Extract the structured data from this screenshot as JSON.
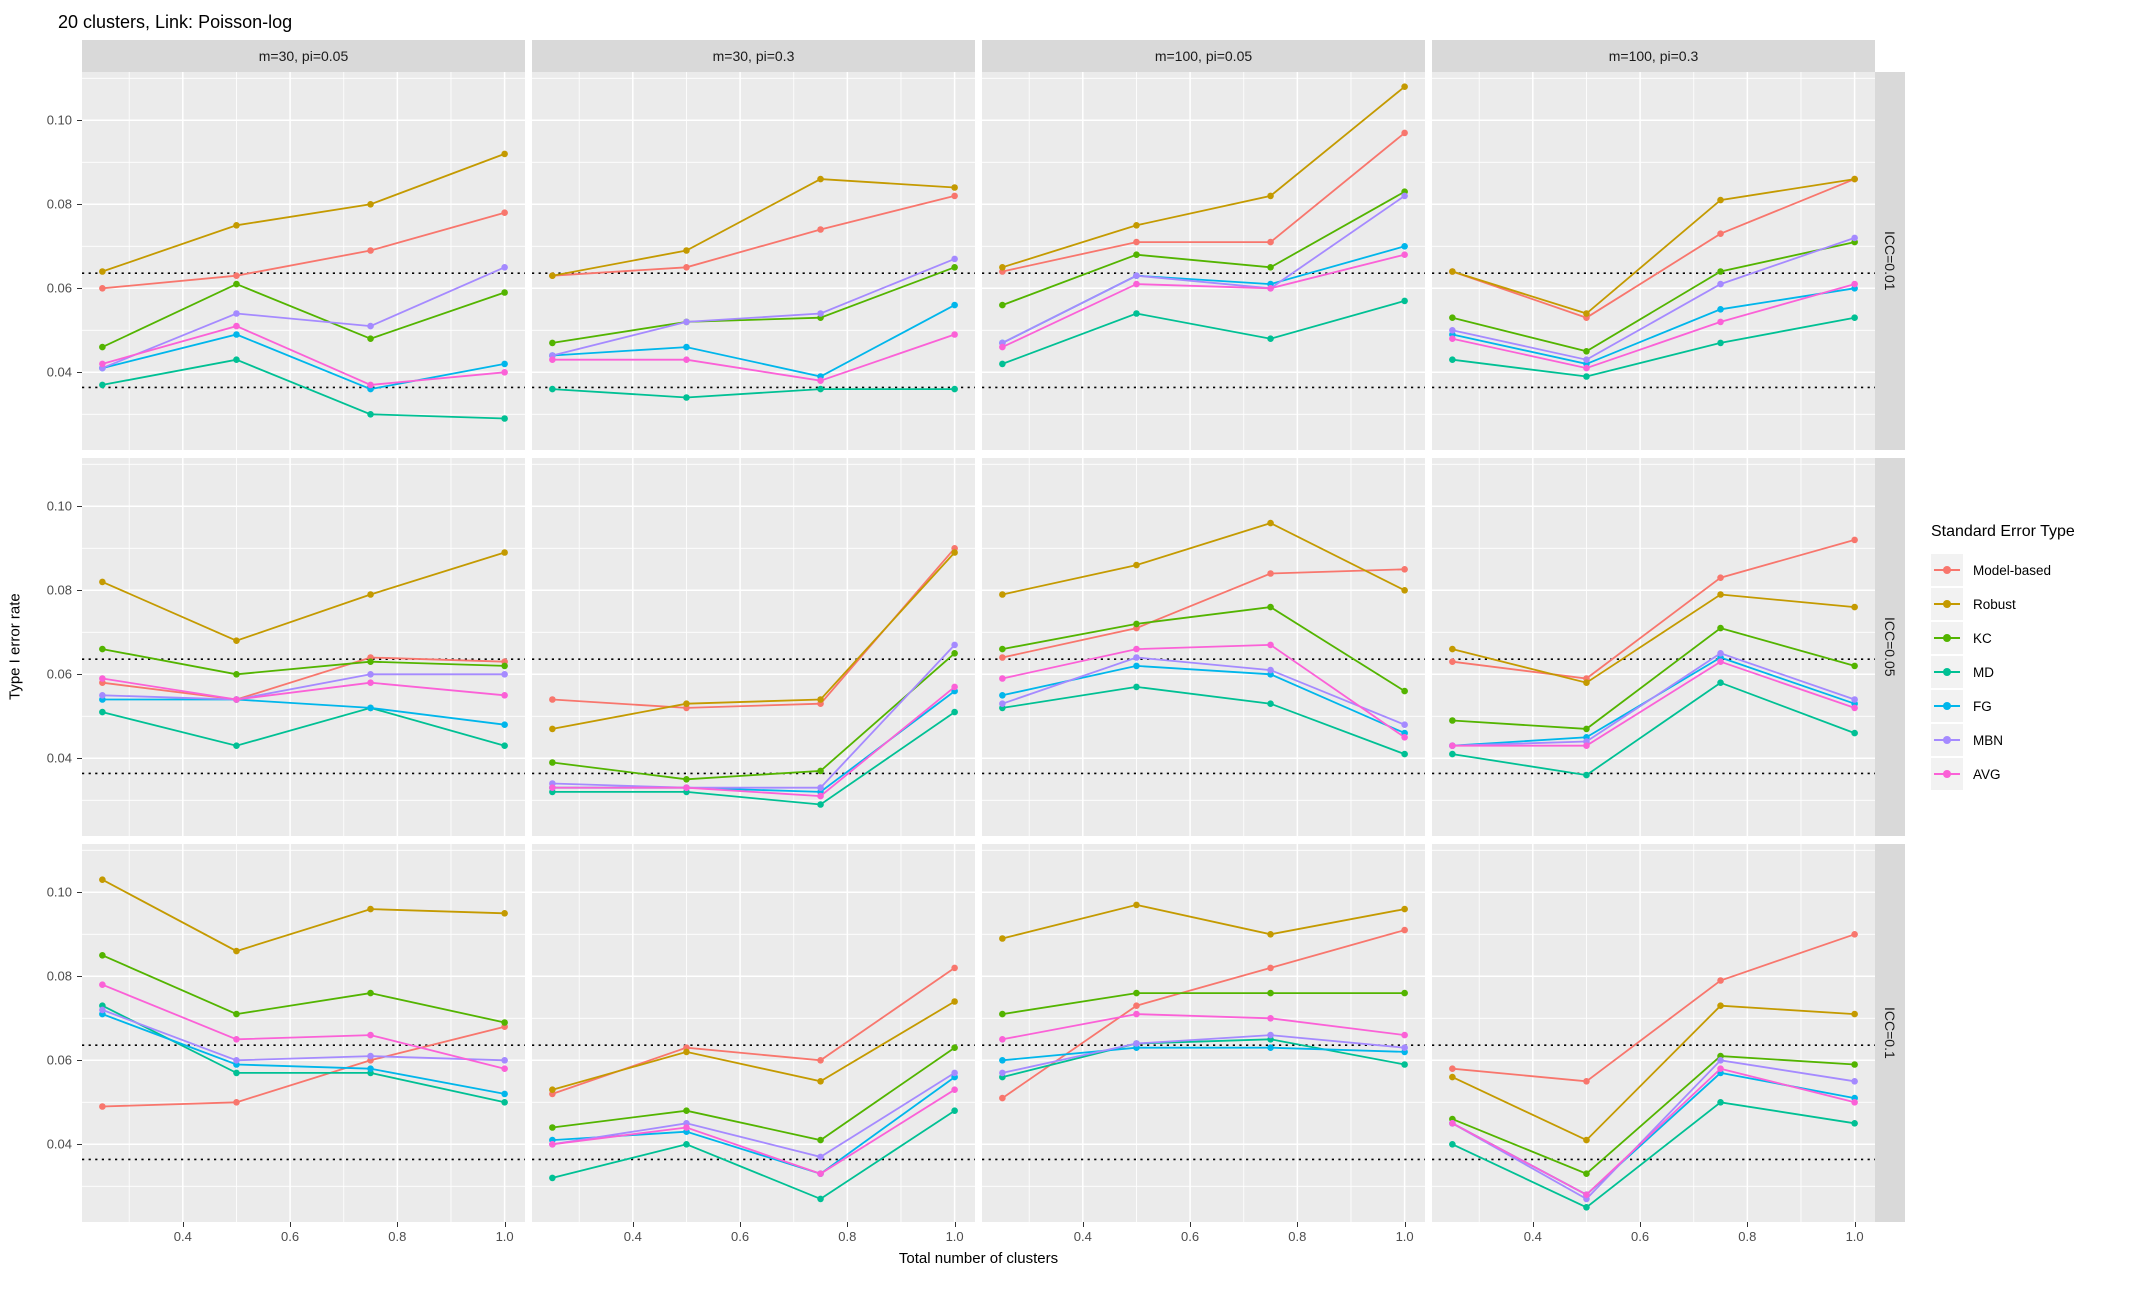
{
  "title": "20 clusters, Link: Poisson-log",
  "chart_data": {
    "type": "line",
    "title": "20 clusters, Link: Poisson-log",
    "xlabel": "Total number of clusters",
    "ylabel": "Type I error rate",
    "legend_title": "Standard Error Type",
    "legend_position": "right",
    "grid": "on",
    "x": [
      0.25,
      0.5,
      0.75,
      1.0
    ],
    "xlim": [
      0.212,
      1.038
    ],
    "ylim": [
      0.0215,
      0.1115
    ],
    "x_tick_labels": [
      "0.4",
      "0.6",
      "0.8",
      "1.0"
    ],
    "x_tick_values": [
      0.4,
      0.6,
      0.8,
      1.0
    ],
    "x_minor_ticks": [
      0.3,
      0.5,
      0.7,
      0.9
    ],
    "y_tick_labels": [
      "0.10",
      "0.08",
      "0.06",
      "0.04"
    ],
    "y_tick_values": [
      0.1,
      0.08,
      0.06,
      0.04
    ],
    "y_minor_ticks": [
      0.03,
      0.05,
      0.07,
      0.09,
      0.11
    ],
    "reference_lines": [
      0.0636,
      0.0364
    ],
    "colors": {
      "panel_bg": "#EBEBEB",
      "strip_bg": "#D9D9D9",
      "gridline": "#FFFFFF",
      "reference_line": "#000000"
    },
    "col_facets": [
      "m=30, pi=0.05",
      "m=30, pi=0.3",
      "m=100, pi=0.05",
      "m=100, pi=0.3"
    ],
    "row_facets": [
      "ICC=0.01",
      "ICC=0.05",
      "ICC=0.1"
    ],
    "series": [
      {
        "name": "Model-based",
        "color": "#F8766D"
      },
      {
        "name": "Robust",
        "color": "#C49A00"
      },
      {
        "name": "KC",
        "color": "#53B400"
      },
      {
        "name": "MD",
        "color": "#00C094"
      },
      {
        "name": "FG",
        "color": "#00B6EB"
      },
      {
        "name": "MBN",
        "color": "#A58AFF"
      },
      {
        "name": "AVG",
        "color": "#FB61D7"
      }
    ],
    "panels": [
      {
        "row_facet": "ICC=0.01",
        "col_facet": "m=30, pi=0.05",
        "values": {
          "Model-based": [
            0.06,
            0.063,
            0.069,
            0.078
          ],
          "Robust": [
            0.064,
            0.075,
            0.08,
            0.092
          ],
          "KC": [
            0.046,
            0.061,
            0.048,
            0.059
          ],
          "MD": [
            0.037,
            0.043,
            0.03,
            0.029
          ],
          "FG": [
            0.041,
            0.049,
            0.036,
            0.042
          ],
          "MBN": [
            0.041,
            0.054,
            0.051,
            0.065
          ],
          "AVG": [
            0.042,
            0.051,
            0.037,
            0.04
          ]
        }
      },
      {
        "row_facet": "ICC=0.01",
        "col_facet": "m=30, pi=0.3",
        "values": {
          "Model-based": [
            0.063,
            0.065,
            0.074,
            0.082
          ],
          "Robust": [
            0.063,
            0.069,
            0.086,
            0.084
          ],
          "KC": [
            0.047,
            0.052,
            0.053,
            0.065
          ],
          "MD": [
            0.036,
            0.034,
            0.036,
            0.036
          ],
          "FG": [
            0.044,
            0.046,
            0.039,
            0.056
          ],
          "MBN": [
            0.044,
            0.052,
            0.054,
            0.067
          ],
          "AVG": [
            0.043,
            0.043,
            0.038,
            0.049
          ]
        }
      },
      {
        "row_facet": "ICC=0.01",
        "col_facet": "m=100, pi=0.05",
        "values": {
          "Model-based": [
            0.064,
            0.071,
            0.071,
            0.097
          ],
          "Robust": [
            0.065,
            0.075,
            0.082,
            0.108
          ],
          "KC": [
            0.056,
            0.068,
            0.065,
            0.083
          ],
          "MD": [
            0.042,
            0.054,
            0.048,
            0.057
          ],
          "FG": [
            0.047,
            0.063,
            0.061,
            0.07
          ],
          "MBN": [
            0.047,
            0.063,
            0.06,
            0.082
          ],
          "AVG": [
            0.046,
            0.061,
            0.06,
            0.068
          ]
        }
      },
      {
        "row_facet": "ICC=0.01",
        "col_facet": "m=100, pi=0.3",
        "values": {
          "Model-based": [
            0.064,
            0.053,
            0.073,
            0.086
          ],
          "Robust": [
            0.064,
            0.054,
            0.081,
            0.086
          ],
          "KC": [
            0.053,
            0.045,
            0.064,
            0.071
          ],
          "MD": [
            0.043,
            0.039,
            0.047,
            0.053
          ],
          "FG": [
            0.049,
            0.042,
            0.055,
            0.06
          ],
          "MBN": [
            0.05,
            0.043,
            0.061,
            0.072
          ],
          "AVG": [
            0.048,
            0.041,
            0.052,
            0.061
          ]
        }
      },
      {
        "row_facet": "ICC=0.05",
        "col_facet": "m=30, pi=0.05",
        "values": {
          "Model-based": [
            0.058,
            0.054,
            0.064,
            0.063
          ],
          "Robust": [
            0.082,
            0.068,
            0.079,
            0.089
          ],
          "KC": [
            0.066,
            0.06,
            0.063,
            0.062
          ],
          "MD": [
            0.051,
            0.043,
            0.052,
            0.043
          ],
          "FG": [
            0.054,
            0.054,
            0.052,
            0.048
          ],
          "MBN": [
            0.055,
            0.054,
            0.06,
            0.06
          ],
          "AVG": [
            0.059,
            0.054,
            0.058,
            0.055
          ]
        }
      },
      {
        "row_facet": "ICC=0.05",
        "col_facet": "m=30, pi=0.3",
        "values": {
          "Model-based": [
            0.054,
            0.052,
            0.053,
            0.09
          ],
          "Robust": [
            0.047,
            0.053,
            0.054,
            0.089
          ],
          "KC": [
            0.039,
            0.035,
            0.037,
            0.065
          ],
          "MD": [
            0.032,
            0.032,
            0.029,
            0.051
          ],
          "FG": [
            0.033,
            0.033,
            0.032,
            0.056
          ],
          "MBN": [
            0.034,
            0.033,
            0.033,
            0.067
          ],
          "AVG": [
            0.033,
            0.033,
            0.031,
            0.057
          ]
        }
      },
      {
        "row_facet": "ICC=0.05",
        "col_facet": "m=100, pi=0.05",
        "values": {
          "Model-based": [
            0.064,
            0.071,
            0.084,
            0.085
          ],
          "Robust": [
            0.079,
            0.086,
            0.096,
            0.08
          ],
          "KC": [
            0.066,
            0.072,
            0.076,
            0.056
          ],
          "MD": [
            0.052,
            0.057,
            0.053,
            0.041
          ],
          "FG": [
            0.055,
            0.062,
            0.06,
            0.046
          ],
          "MBN": [
            0.053,
            0.064,
            0.061,
            0.048
          ],
          "AVG": [
            0.059,
            0.066,
            0.067,
            0.045
          ]
        }
      },
      {
        "row_facet": "ICC=0.05",
        "col_facet": "m=100, pi=0.3",
        "values": {
          "Model-based": [
            0.063,
            0.059,
            0.083,
            0.092
          ],
          "Robust": [
            0.066,
            0.058,
            0.079,
            0.076
          ],
          "KC": [
            0.049,
            0.047,
            0.071,
            0.062
          ],
          "MD": [
            0.041,
            0.036,
            0.058,
            0.046
          ],
          "FG": [
            0.043,
            0.045,
            0.064,
            0.053
          ],
          "MBN": [
            0.043,
            0.044,
            0.065,
            0.054
          ],
          "AVG": [
            0.043,
            0.043,
            0.063,
            0.052
          ]
        }
      },
      {
        "row_facet": "ICC=0.1",
        "col_facet": "m=30, pi=0.05",
        "values": {
          "Model-based": [
            0.049,
            0.05,
            0.06,
            0.068
          ],
          "Robust": [
            0.103,
            0.086,
            0.096,
            0.095
          ],
          "KC": [
            0.085,
            0.071,
            0.076,
            0.069
          ],
          "MD": [
            0.073,
            0.057,
            0.057,
            0.05
          ],
          "FG": [
            0.071,
            0.059,
            0.058,
            0.052
          ],
          "MBN": [
            0.072,
            0.06,
            0.061,
            0.06
          ],
          "AVG": [
            0.078,
            0.065,
            0.066,
            0.058
          ]
        }
      },
      {
        "row_facet": "ICC=0.1",
        "col_facet": "m=30, pi=0.3",
        "values": {
          "Model-based": [
            0.052,
            0.063,
            0.06,
            0.082
          ],
          "Robust": [
            0.053,
            0.062,
            0.055,
            0.074
          ],
          "KC": [
            0.044,
            0.048,
            0.041,
            0.063
          ],
          "MD": [
            0.032,
            0.04,
            0.027,
            0.048
          ],
          "FG": [
            0.041,
            0.043,
            0.033,
            0.056
          ],
          "MBN": [
            0.04,
            0.045,
            0.037,
            0.057
          ],
          "AVG": [
            0.04,
            0.044,
            0.033,
            0.053
          ]
        }
      },
      {
        "row_facet": "ICC=0.1",
        "col_facet": "m=100, pi=0.05",
        "values": {
          "Model-based": [
            0.051,
            0.073,
            0.082,
            0.091
          ],
          "Robust": [
            0.089,
            0.097,
            0.09,
            0.096
          ],
          "KC": [
            0.071,
            0.076,
            0.076,
            0.076
          ],
          "MD": [
            0.056,
            0.064,
            0.065,
            0.059
          ],
          "FG": [
            0.06,
            0.063,
            0.063,
            0.062
          ],
          "MBN": [
            0.057,
            0.064,
            0.066,
            0.063
          ],
          "AVG": [
            0.065,
            0.071,
            0.07,
            0.066
          ]
        }
      },
      {
        "row_facet": "ICC=0.1",
        "col_facet": "m=100, pi=0.3",
        "values": {
          "Model-based": [
            0.058,
            0.055,
            0.079,
            0.09
          ],
          "Robust": [
            0.056,
            0.041,
            0.073,
            0.071
          ],
          "KC": [
            0.046,
            0.033,
            0.061,
            0.059
          ],
          "MD": [
            0.04,
            0.025,
            0.05,
            0.045
          ],
          "FG": [
            0.045,
            0.028,
            0.057,
            0.051
          ],
          "MBN": [
            0.045,
            0.027,
            0.06,
            0.055
          ],
          "AVG": [
            0.045,
            0.028,
            0.058,
            0.05
          ]
        }
      }
    ]
  }
}
